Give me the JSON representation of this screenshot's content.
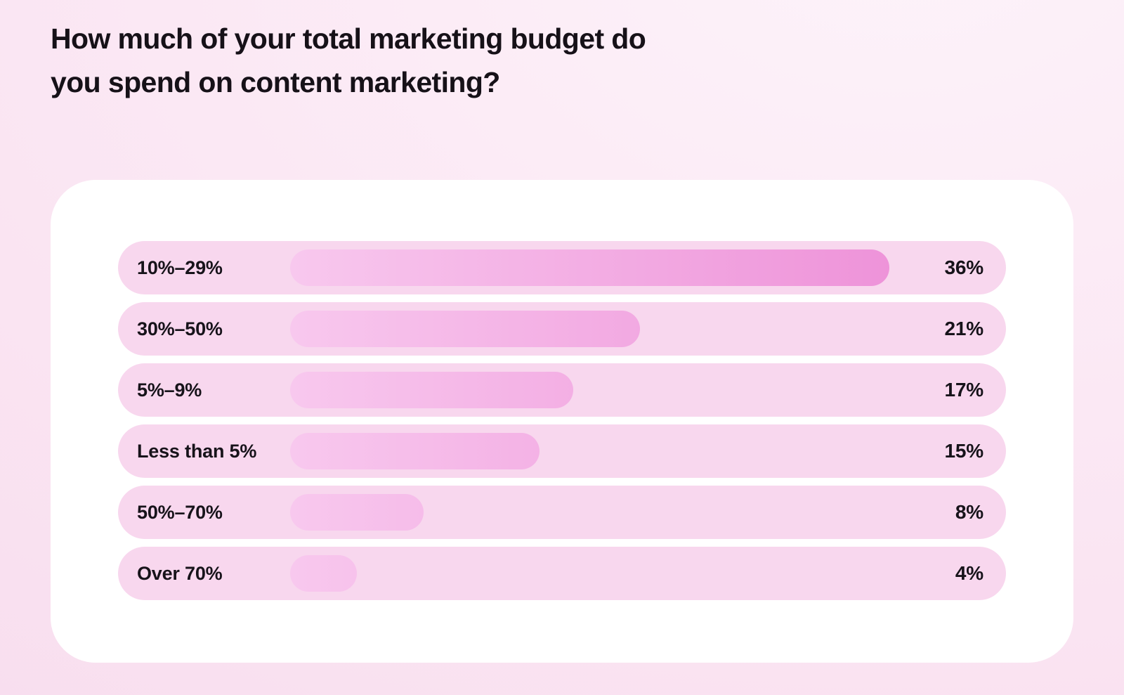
{
  "title": {
    "lines": [
      "How much of your total marketing budget do",
      "you spend on content marketing?"
    ]
  },
  "colors": {
    "page_background": "#fbe8f4",
    "card_background": "#ffffff",
    "row_pill": "#f8d7ee",
    "bar_gradient_from": "#f8c8ee",
    "bar_gradient_to": "#ee93d9",
    "text": "#17131a"
  },
  "chart_data": {
    "type": "bar",
    "orientation": "horizontal",
    "title": "How much of your total marketing budget do you spend on content marketing?",
    "categories": [
      "10%–29%",
      "30%–50%",
      "5%–9%",
      "Less than 5%",
      "50%–70%",
      "Over 70%"
    ],
    "values": [
      36,
      21,
      17,
      15,
      8,
      4
    ],
    "value_labels": [
      "36%",
      "21%",
      "17%",
      "15%",
      "8%",
      "4%"
    ],
    "xlabel": "",
    "ylabel": "",
    "xlim": [
      0,
      36
    ],
    "grid": false,
    "legend": false,
    "sorted": "descending"
  }
}
